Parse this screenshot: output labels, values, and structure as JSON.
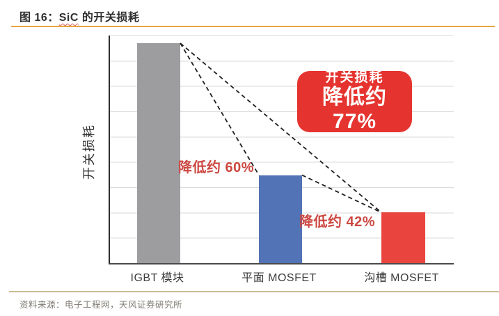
{
  "figure": {
    "title_prefix": "图 16：",
    "title_term": "SiC",
    "title_suffix": " 的开关损耗",
    "source": "资料来源：电子工程网，天风证券研究所"
  },
  "chart_data": {
    "type": "bar",
    "title": "SiC 的开关损耗",
    "ylabel": "开关损耗",
    "xlabel": "",
    "categories": [
      "IGBT 模块",
      "平面 MOSFET",
      "沟槽 MOSFET"
    ],
    "values": [
      100,
      40,
      23
    ],
    "value_basis": "relative switching loss, IGBT module = 100",
    "ylim": [
      0,
      103.5
    ],
    "grid": true,
    "gridline_interval": 11.5,
    "legend": "none",
    "bar_colors": [
      "#9d9da0",
      "#5273b5",
      "#ea443f"
    ],
    "annotations": [
      {
        "text": "降低约 60%",
        "between": [
          "IGBT 模块",
          "平面 MOSFET"
        ],
        "style": "red-text"
      },
      {
        "text": "降低约 42%",
        "between": [
          "平面 MOSFET",
          "沟槽 MOSFET"
        ],
        "style": "red-text"
      },
      {
        "text": "开关损耗 降低约 77%",
        "between": [
          "IGBT 模块",
          "沟槽 MOSFET"
        ],
        "style": "red-badge"
      }
    ],
    "badge": {
      "line1": "开关损耗",
      "line2": "降低约 77%"
    },
    "connector_style": "black dashed lines linking bar tops"
  },
  "colors": {
    "accent_rule": "#e9a43e",
    "footer_rule": "#cdbb96",
    "badge_bg": "#e5342f",
    "callout_text": "#cc4842",
    "dashed_line": "#1f1f1f",
    "grid_line": "#dadada"
  }
}
